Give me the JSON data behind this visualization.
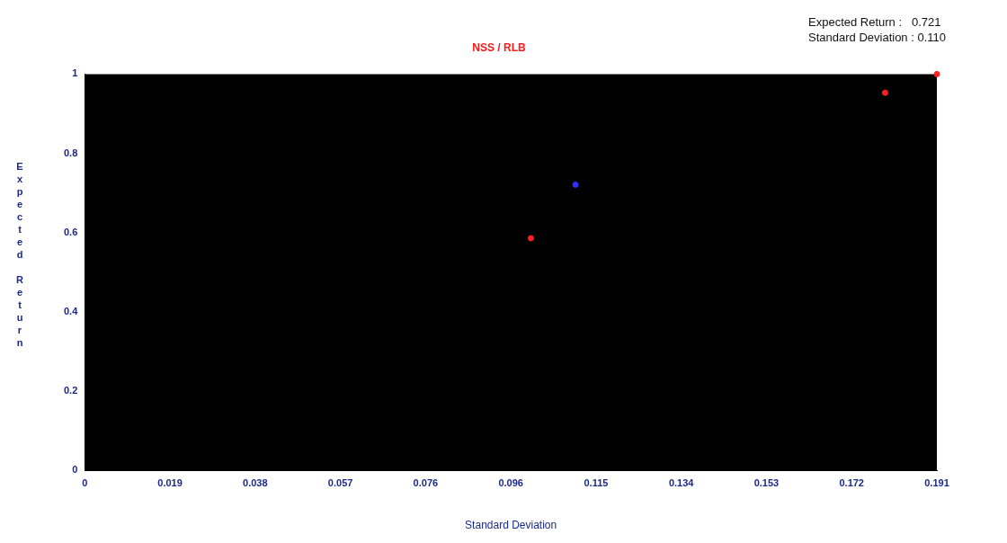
{
  "chart_data": {
    "type": "scatter",
    "title": "NSS / RLB",
    "xlabel": "Standard Deviation",
    "ylabel": "Expected Return",
    "annotations": [
      "Expected Return :   0.721",
      "Standard Deviation : 0.110"
    ],
    "series": [
      {
        "color": "#ff2020",
        "x": [
          0.1,
          0.1794,
          0.191
        ],
        "values": [
          0.586,
          0.953,
          1.0
        ]
      },
      {
        "color": "#3030ff",
        "x": [
          0.11
        ],
        "values": [
          0.721
        ]
      }
    ],
    "xlim": [
      0,
      0.191
    ],
    "xticks": [
      0,
      {
        "value": 0.0191,
        "label": "0.019"
      },
      {
        "value": 0.0382,
        "label": "0.038"
      },
      {
        "value": 0.0573,
        "label": "0.057"
      },
      {
        "value": 0.0764,
        "label": "0.076"
      },
      {
        "value": 0.0955,
        "label": "0.096"
      },
      {
        "value": 0.1146,
        "label": "0.115"
      },
      {
        "value": 0.1337,
        "label": "0.134"
      },
      {
        "value": 0.1528,
        "label": "0.153"
      },
      {
        "value": 0.1719,
        "label": "0.172"
      },
      0.191
    ],
    "ylim": [
      0,
      1
    ],
    "yticks": [
      0,
      0.2,
      0.4,
      0.6,
      0.8,
      1
    ],
    "grid": false,
    "legend": false,
    "marker": "circle"
  }
}
